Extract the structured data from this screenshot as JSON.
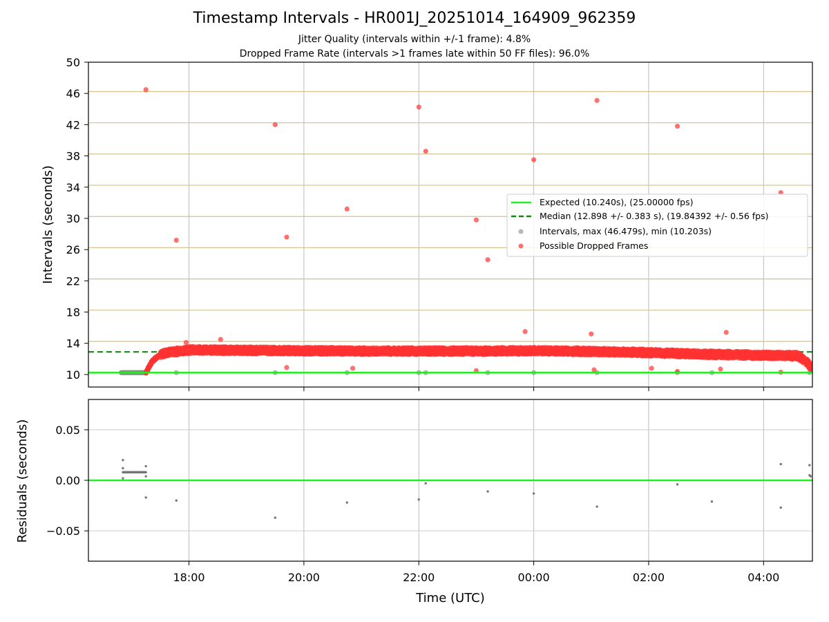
{
  "chart_data": [
    {
      "type": "scatter",
      "title": "Timestamp Intervals - HR001J_20251014_164909_962359",
      "subtitle_1": "Jitter Quality (intervals within +/-1 frame): 4.8%",
      "subtitle_2": "Dropped Frame Rate (intervals >1 frames late within 50 FF files): 96.0%",
      "xlabel": "",
      "ylabel": "Intervals (seconds)",
      "xlim_hours": [
        16.25,
        28.85
      ],
      "ylim": [
        8.4,
        50
      ],
      "y_ticks": [
        10,
        14,
        18,
        22,
        26,
        30,
        34,
        38,
        42,
        46,
        50
      ],
      "y_tick_labels": [
        "10",
        "14",
        "18",
        "22",
        "26",
        "30",
        "34",
        "38",
        "42",
        "46",
        "50"
      ],
      "frame_lines": [
        10.24,
        14.24,
        18.24,
        22.24,
        26.24,
        30.24,
        34.24,
        38.24,
        42.24,
        46.24
      ],
      "expected_line": 10.24,
      "median_line": 12.898,
      "legend": {
        "position": "center-right",
        "entries": [
          {
            "label": "Expected (10.240s), (25.00000 fps)",
            "style": "solid-line",
            "color": "#22ee22"
          },
          {
            "label": "Median (12.898 +/- 0.383 s), (19.84392 +/- 0.56 fps)",
            "style": "dashed-line",
            "color": "#118811"
          },
          {
            "label": "Intervals, max (46.479s), min (10.203s)",
            "style": "marker",
            "color": "#999999"
          },
          {
            "label": "Possible Dropped Frames",
            "style": "marker",
            "color": "#ff3333"
          }
        ]
      },
      "series": [
        {
          "name": "Intervals (on-time)",
          "color": "#999999",
          "points": [
            [
              16.85,
              10.24
            ],
            [
              16.95,
              10.24
            ],
            [
              17.05,
              10.24
            ],
            [
              17.15,
              10.24
            ],
            [
              17.2,
              10.24
            ],
            [
              17.25,
              10.24
            ],
            [
              17.78,
              10.24
            ],
            [
              19.5,
              10.24
            ],
            [
              20.75,
              10.24
            ],
            [
              22.0,
              10.24
            ],
            [
              22.12,
              10.24
            ],
            [
              23.2,
              10.24
            ],
            [
              24.0,
              10.24
            ],
            [
              25.1,
              10.24
            ],
            [
              26.5,
              10.24
            ],
            [
              27.1,
              10.24
            ],
            [
              28.8,
              10.24
            ]
          ]
        },
        {
          "name": "Possible Dropped Frames",
          "color": "#ff3333",
          "outliers": [
            [
              17.25,
              46.48
            ],
            [
              17.78,
              27.2
            ],
            [
              19.5,
              42.0
            ],
            [
              19.7,
              27.6
            ],
            [
              20.75,
              31.2
            ],
            [
              22.0,
              44.25
            ],
            [
              22.12,
              38.6
            ],
            [
              23.0,
              29.8
            ],
            [
              23.2,
              24.7
            ],
            [
              24.0,
              37.5
            ],
            [
              25.1,
              45.1
            ],
            [
              26.5,
              41.8
            ],
            [
              28.3,
              33.3
            ],
            [
              23.85,
              15.5
            ],
            [
              25.0,
              15.2
            ],
            [
              27.35,
              15.4
            ],
            [
              18.55,
              14.5
            ],
            [
              17.95,
              14.1
            ],
            [
              19.7,
              10.9
            ],
            [
              20.85,
              10.8
            ],
            [
              23.0,
              10.5
            ],
            [
              25.05,
              10.6
            ],
            [
              26.5,
              10.4
            ],
            [
              28.3,
              10.3
            ],
            [
              27.25,
              10.7
            ],
            [
              26.05,
              10.8
            ]
          ],
          "band": [
            [
              17.25,
              10.24
            ],
            [
              17.3,
              10.9
            ],
            [
              17.35,
              11.6
            ],
            [
              17.45,
              12.3
            ],
            [
              17.6,
              12.8
            ],
            [
              18.0,
              13.15
            ],
            [
              19.0,
              13.1
            ],
            [
              20.0,
              13.05
            ],
            [
              21.0,
              13.0
            ],
            [
              22.0,
              13.0
            ],
            [
              23.0,
              13.0
            ],
            [
              24.0,
              13.05
            ],
            [
              25.0,
              12.95
            ],
            [
              26.0,
              12.8
            ],
            [
              27.0,
              12.6
            ],
            [
              28.0,
              12.45
            ],
            [
              28.6,
              12.4
            ],
            [
              28.75,
              11.6
            ],
            [
              28.85,
              10.8
            ]
          ]
        }
      ]
    },
    {
      "type": "scatter",
      "xlabel": "Time (UTC)",
      "ylabel": "Residuals (seconds)",
      "xlim_hours": [
        16.25,
        28.85
      ],
      "ylim": [
        -0.08,
        0.08
      ],
      "y_ticks": [
        -0.05,
        0.0,
        0.05
      ],
      "y_tick_labels": [
        "−0.05",
        "0.00",
        "0.05"
      ],
      "x_ticks_hours": [
        18,
        20,
        22,
        24,
        26,
        28
      ],
      "x_tick_labels": [
        "18:00",
        "20:00",
        "22:00",
        "00:00",
        "02:00",
        "04:00"
      ],
      "zero_line": 0.0,
      "series": [
        {
          "name": "Residuals",
          "color": "#777777",
          "points": [
            [
              16.85,
              0.02
            ],
            [
              16.85,
              0.012
            ],
            [
              16.85,
              0.002
            ],
            [
              17.25,
              0.014
            ],
            [
              17.25,
              0.004
            ],
            [
              17.25,
              -0.017
            ],
            [
              17.78,
              -0.02
            ],
            [
              19.5,
              -0.037
            ],
            [
              20.75,
              -0.022
            ],
            [
              22.0,
              -0.019
            ],
            [
              22.12,
              -0.003
            ],
            [
              23.2,
              -0.011
            ],
            [
              24.0,
              -0.013
            ],
            [
              25.1,
              -0.026
            ],
            [
              26.5,
              -0.004
            ],
            [
              27.1,
              -0.021
            ],
            [
              28.3,
              0.016
            ],
            [
              28.3,
              -0.027
            ],
            [
              28.8,
              0.015
            ],
            [
              28.8,
              0.005
            ],
            [
              28.82,
              0.004
            ]
          ],
          "cluster": {
            "x_start": 16.85,
            "x_end": 17.25,
            "y": 0.008
          }
        }
      ]
    }
  ]
}
